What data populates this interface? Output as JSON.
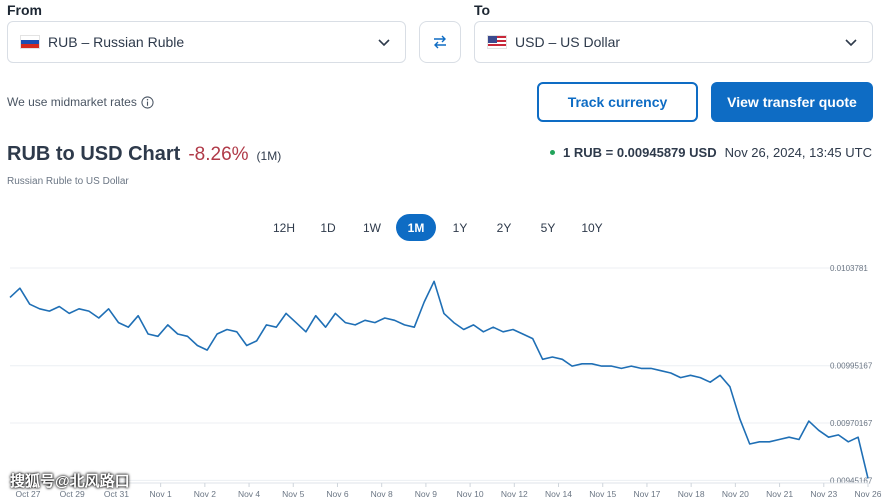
{
  "converter": {
    "from_label": "From",
    "to_label": "To",
    "from_code": "RUB",
    "from_name": "– Russian Ruble",
    "to_code": "USD",
    "to_name": "– US Dollar"
  },
  "midmarket_text": "We use midmarket rates",
  "buttons": {
    "track": "Track currency",
    "quote": "View transfer quote"
  },
  "chart_header": {
    "title": "RUB to USD Chart",
    "change": "-8.26%",
    "period": "(1M)",
    "subtitle": "Russian Ruble to US Dollar",
    "rate_text": "1 RUB = 0.00945879 USD",
    "timestamp": "Nov 26, 2024, 13:45 UTC"
  },
  "ranges": [
    "12H",
    "1D",
    "1W",
    "1M",
    "1Y",
    "2Y",
    "5Y",
    "10Y"
  ],
  "active_range": "1M",
  "watermark": "搜狐号@北风路口",
  "colors": {
    "accent": "#0e6cc4",
    "negative": "#b03a48",
    "line": "#1f6fb5",
    "live_dot": "#21a35a"
  },
  "chart_data": {
    "type": "line",
    "title": "RUB to USD Chart",
    "x_tick_labels": [
      "Oct 27",
      "Oct 29",
      "Oct 31",
      "Nov 1",
      "Nov 2",
      "Nov 4",
      "Nov 5",
      "Nov 6",
      "Nov 8",
      "Nov 9",
      "Nov 10",
      "Nov 12",
      "Nov 14",
      "Nov 15",
      "Nov 17",
      "Nov 18",
      "Nov 20",
      "Nov 21",
      "Nov 23",
      "Nov 26"
    ],
    "y_tick_labels": [
      "0.0103781",
      "0.00995167",
      "0.00970167",
      "0.00945167"
    ],
    "y_ticks": [
      0.0103781,
      0.00995167,
      0.00970167,
      0.00945167
    ],
    "ylim": [
      0.00944,
      0.0104
    ],
    "grid": true,
    "series": [
      {
        "values": [
          0.01025,
          0.01029,
          0.01022,
          0.0102,
          0.01019,
          0.01021,
          0.01018,
          0.0102,
          0.01019,
          0.01016,
          0.0102,
          0.01014,
          0.01012,
          0.01017,
          0.01009,
          0.01008,
          0.01013,
          0.01009,
          0.01008,
          0.01004,
          0.01002,
          0.01009,
          0.01011,
          0.0101,
          0.01004,
          0.01006,
          0.01013,
          0.01012,
          0.01018,
          0.01014,
          0.0101,
          0.01017,
          0.01012,
          0.01018,
          0.01014,
          0.01013,
          0.01015,
          0.01014,
          0.01016,
          0.01015,
          0.01013,
          0.01012,
          0.01023,
          0.01032,
          0.01018,
          0.01014,
          0.01011,
          0.01013,
          0.0101,
          0.01012,
          0.0101,
          0.01011,
          0.01009,
          0.01007,
          0.00998,
          0.00999,
          0.00998,
          0.00995,
          0.00996,
          0.00996,
          0.00995,
          0.00995,
          0.00994,
          0.00995,
          0.00994,
          0.00994,
          0.00993,
          0.00992,
          0.0099,
          0.00991,
          0.0099,
          0.00988,
          0.00991,
          0.00986,
          0.00972,
          0.00961,
          0.00962,
          0.00962,
          0.00963,
          0.00964,
          0.00963,
          0.00971,
          0.00967,
          0.00964,
          0.00965,
          0.00962,
          0.00964,
          0.00946
        ]
      }
    ]
  }
}
